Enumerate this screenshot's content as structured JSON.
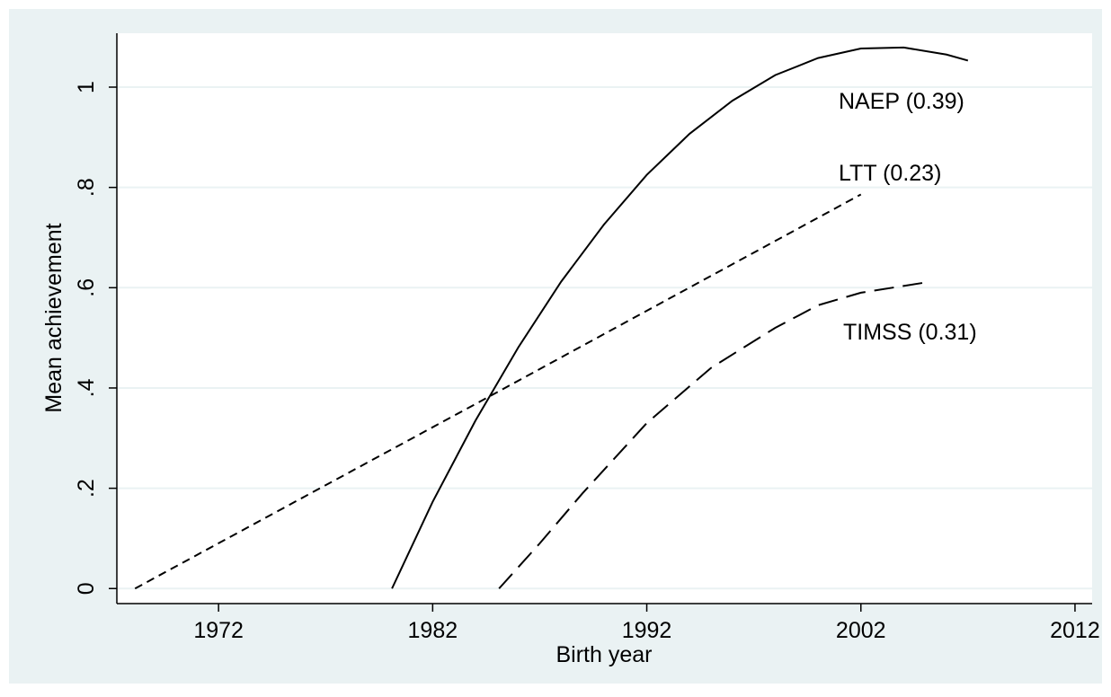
{
  "chart_data": {
    "type": "line",
    "xlabel": "Birth year",
    "ylabel": "Mean achievement",
    "xlim": [
      1967.25,
      2012.8
    ],
    "ylim": [
      -0.03,
      1.1075
    ],
    "xticks": [
      1972,
      1982,
      1992,
      2002,
      2012
    ],
    "yticks": [
      0,
      {
        "value": 0.2,
        "label": ".2"
      },
      {
        "value": 0.4,
        "label": ".4"
      },
      {
        "value": 0.6,
        "label": ".6"
      },
      {
        "value": 0.8,
        "label": ".8"
      },
      1
    ],
    "grid": true,
    "series": [
      {
        "name": "NAEP (0.39)",
        "color": "#000000",
        "dash": "solid",
        "x": [
          1980.1,
          1982,
          1984,
          1986,
          1988,
          1990,
          1992,
          1994,
          1996,
          1998,
          2000,
          2002,
          2004,
          2006,
          2007
        ],
        "values": [
          0,
          0.173,
          0.335,
          0.481,
          0.612,
          0.726,
          0.825,
          0.907,
          0.973,
          1.024,
          1.058,
          1.077,
          1.079,
          1.065,
          1.053
        ]
      },
      {
        "name": "LTT (0.23)",
        "color": "#000000",
        "dash": "short",
        "x": [
          1968.1,
          1976,
          1984,
          1992,
          2002
        ],
        "values": [
          0,
          0.183,
          0.368,
          0.554,
          0.786
        ]
      },
      {
        "name": "TIMSS (0.31)",
        "color": "#000000",
        "dash": "long",
        "x": [
          1985.1,
          1987,
          1989,
          1992,
          1995,
          1998,
          2000,
          2002,
          2005.1
        ],
        "values": [
          0,
          0.09,
          0.19,
          0.33,
          0.44,
          0.52,
          0.565,
          0.59,
          0.611
        ]
      }
    ]
  }
}
